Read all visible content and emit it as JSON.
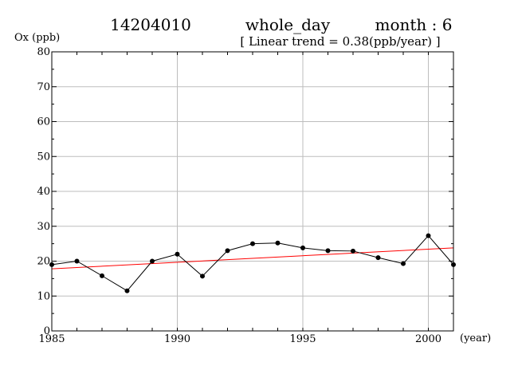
{
  "header": {
    "station": "14204010",
    "period": "whole_day",
    "month": "month : 6",
    "trend_note": "[ Linear trend = 0.38(ppb/year) ]"
  },
  "chart_data": {
    "type": "line",
    "ylabel": "Ox (ppb)",
    "xlabel": "(year)",
    "xlim": [
      1985,
      2001
    ],
    "ylim": [
      0,
      80
    ],
    "xticks": [
      1985,
      1990,
      1995,
      2000
    ],
    "yticks": [
      0,
      10,
      20,
      30,
      40,
      50,
      60,
      70,
      80
    ],
    "grid": true,
    "series": [
      {
        "x": [
          1985,
          1986,
          1987,
          1988,
          1989,
          1990,
          1991,
          1992,
          1993,
          1994,
          1995,
          1996,
          1997,
          1998,
          1999,
          2000,
          2001
        ],
        "y": [
          19.0,
          20.0,
          15.8,
          11.5,
          20.0,
          22.0,
          15.7,
          23.0,
          25.0,
          25.2,
          23.8,
          23.0,
          22.9,
          21.0,
          19.3,
          27.3,
          19.0
        ],
        "color": "#000000"
      }
    ],
    "trend": {
      "x": [
        1985,
        2001
      ],
      "y": [
        17.8,
        23.8
      ],
      "color": "#ff0000"
    }
  }
}
